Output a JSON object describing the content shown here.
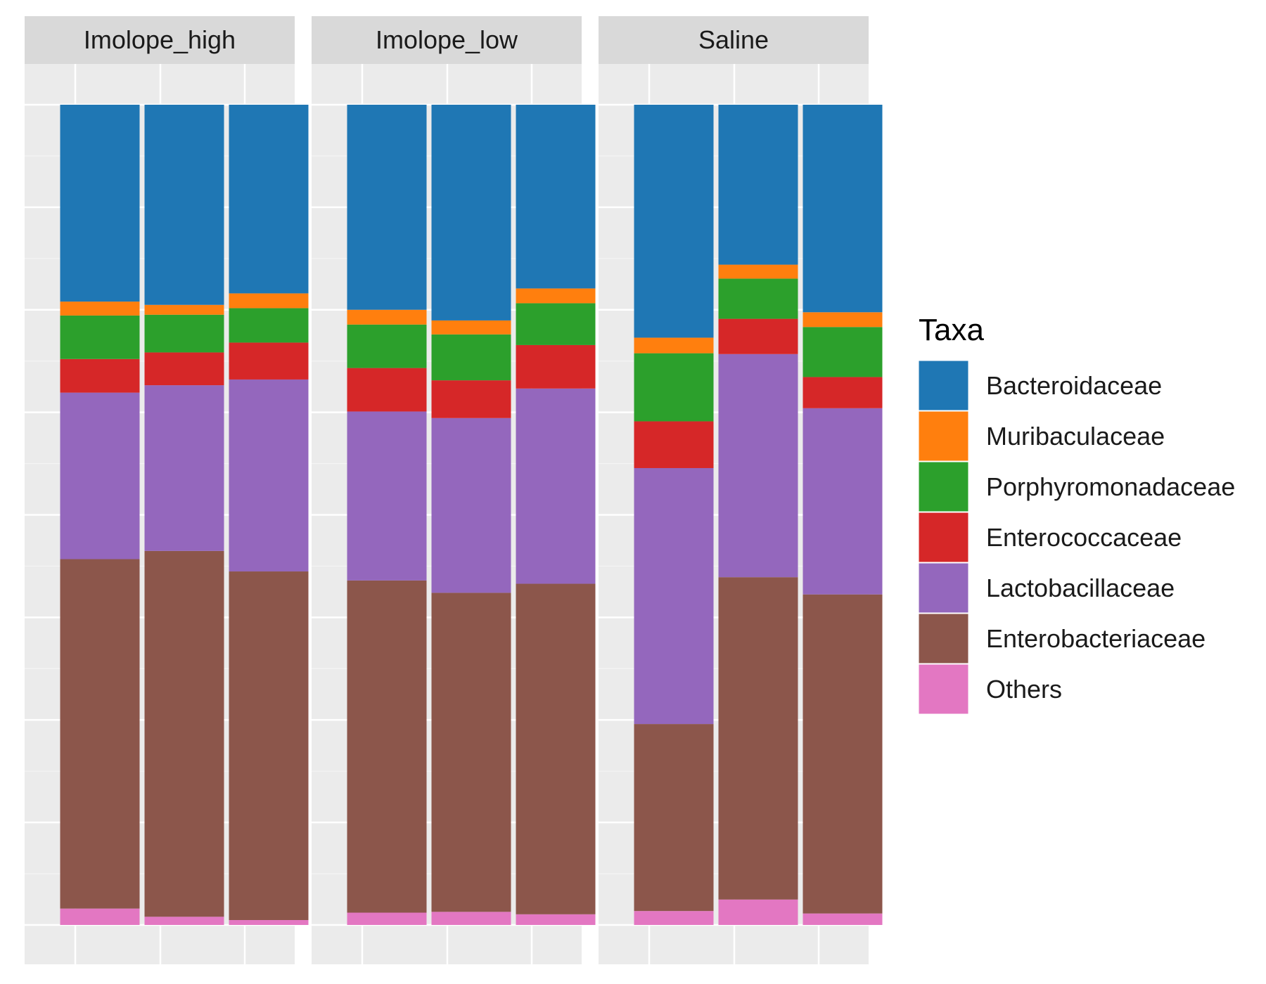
{
  "chart_data": {
    "type": "bar",
    "stacked": true,
    "normalized": true,
    "grid": true,
    "ylim": [
      0,
      1
    ],
    "legend": {
      "title": "Taxa",
      "position": "right"
    },
    "stack_order_bottom_to_top": [
      "Others",
      "Enterobacteriaceae",
      "Lactobacillaceae",
      "Enterococcaceae",
      "Porphyromonadaceae",
      "Muribaculaceae",
      "Bacteroidaceae"
    ],
    "taxa": [
      {
        "name": "Bacteroidaceae",
        "color": "#1F77B4"
      },
      {
        "name": "Muribaculaceae",
        "color": "#FF7F0E"
      },
      {
        "name": "Porphyromonadaceae",
        "color": "#2CA02C"
      },
      {
        "name": "Enterococcaceae",
        "color": "#D62728"
      },
      {
        "name": "Lactobacillaceae",
        "color": "#9467BD"
      },
      {
        "name": "Enterobacteriaceae",
        "color": "#8C564B"
      },
      {
        "name": "Others",
        "color": "#E377C2"
      }
    ],
    "panels": [
      {
        "label": "Imolope_high",
        "bars": [
          {
            "Others": 0.02,
            "Enterobacteriaceae": 0.426,
            "Lactobacillaceae": 0.203,
            "Enterococcaceae": 0.041,
            "Porphyromonadaceae": 0.053,
            "Muribaculaceae": 0.017,
            "Bacteroidaceae": 0.24
          },
          {
            "Others": 0.01,
            "Enterobacteriaceae": 0.446,
            "Lactobacillaceae": 0.202,
            "Enterococcaceae": 0.04,
            "Porphyromonadaceae": 0.046,
            "Muribaculaceae": 0.012,
            "Bacteroidaceae": 0.244
          },
          {
            "Others": 0.006,
            "Enterobacteriaceae": 0.425,
            "Lactobacillaceae": 0.234,
            "Enterococcaceae": 0.045,
            "Porphyromonadaceae": 0.042,
            "Muribaculaceae": 0.018,
            "Bacteroidaceae": 0.23
          }
        ]
      },
      {
        "label": "Imolope_low",
        "bars": [
          {
            "Others": 0.015,
            "Enterobacteriaceae": 0.405,
            "Lactobacillaceae": 0.206,
            "Enterococcaceae": 0.053,
            "Porphyromonadaceae": 0.053,
            "Muribaculaceae": 0.018,
            "Bacteroidaceae": 0.25
          },
          {
            "Others": 0.016,
            "Enterobacteriaceae": 0.389,
            "Lactobacillaceae": 0.213,
            "Enterococcaceae": 0.046,
            "Porphyromonadaceae": 0.056,
            "Muribaculaceae": 0.017,
            "Bacteroidaceae": 0.263
          },
          {
            "Others": 0.013,
            "Enterobacteriaceae": 0.403,
            "Lactobacillaceae": 0.238,
            "Enterococcaceae": 0.053,
            "Porphyromonadaceae": 0.051,
            "Muribaculaceae": 0.018,
            "Bacteroidaceae": 0.224
          }
        ]
      },
      {
        "label": "Saline",
        "bars": [
          {
            "Others": 0.017,
            "Enterobacteriaceae": 0.228,
            "Lactobacillaceae": 0.312,
            "Enterococcaceae": 0.057,
            "Porphyromonadaceae": 0.083,
            "Muribaculaceae": 0.019,
            "Bacteroidaceae": 0.284
          },
          {
            "Others": 0.031,
            "Enterobacteriaceae": 0.393,
            "Lactobacillaceae": 0.272,
            "Enterococcaceae": 0.043,
            "Porphyromonadaceae": 0.049,
            "Muribaculaceae": 0.017,
            "Bacteroidaceae": 0.195
          },
          {
            "Others": 0.014,
            "Enterobacteriaceae": 0.389,
            "Lactobacillaceae": 0.227,
            "Enterococcaceae": 0.038,
            "Porphyromonadaceae": 0.061,
            "Muribaculaceae": 0.018,
            "Bacteroidaceae": 0.253
          }
        ]
      }
    ]
  }
}
